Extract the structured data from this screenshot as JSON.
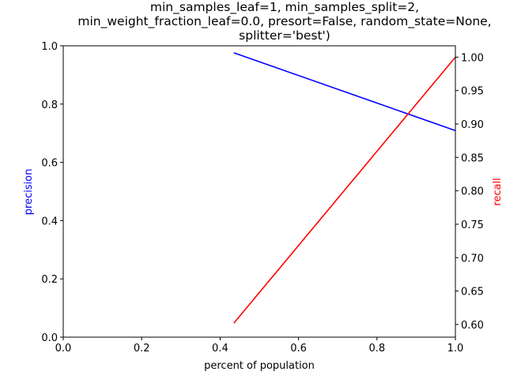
{
  "chart_data": {
    "type": "line",
    "title_lines": [
      "min_samples_leaf=1, min_samples_split=2,",
      "min_weight_fraction_leaf=0.0, presort=False, random_state=None,",
      "splitter='best')"
    ],
    "xlabel": "percent of population",
    "ylabel_left": "precision",
    "ylabel_right": "recall",
    "xlim": [
      0.0,
      1.0
    ],
    "ylim_left": [
      0.0,
      1.0
    ],
    "ylim_right": [
      0.581,
      1.017
    ],
    "x_ticks": [
      "0.0",
      "0.2",
      "0.4",
      "0.6",
      "0.8",
      "1.0"
    ],
    "y_ticks_left": [
      "0.0",
      "0.2",
      "0.4",
      "0.6",
      "0.8",
      "1.0"
    ],
    "y_ticks_right": [
      "0.60",
      "0.65",
      "0.70",
      "0.75",
      "0.80",
      "0.85",
      "0.90",
      "0.95",
      "1.00"
    ],
    "grid": false,
    "series": [
      {
        "axis": "left",
        "color": "#0000ff",
        "x": [
          0.435,
          1.0
        ],
        "y": [
          0.976,
          0.709
        ]
      },
      {
        "axis": "right",
        "color": "#ff0000",
        "x": [
          0.435,
          1.0
        ],
        "y": [
          0.602,
          1.0
        ]
      }
    ]
  }
}
